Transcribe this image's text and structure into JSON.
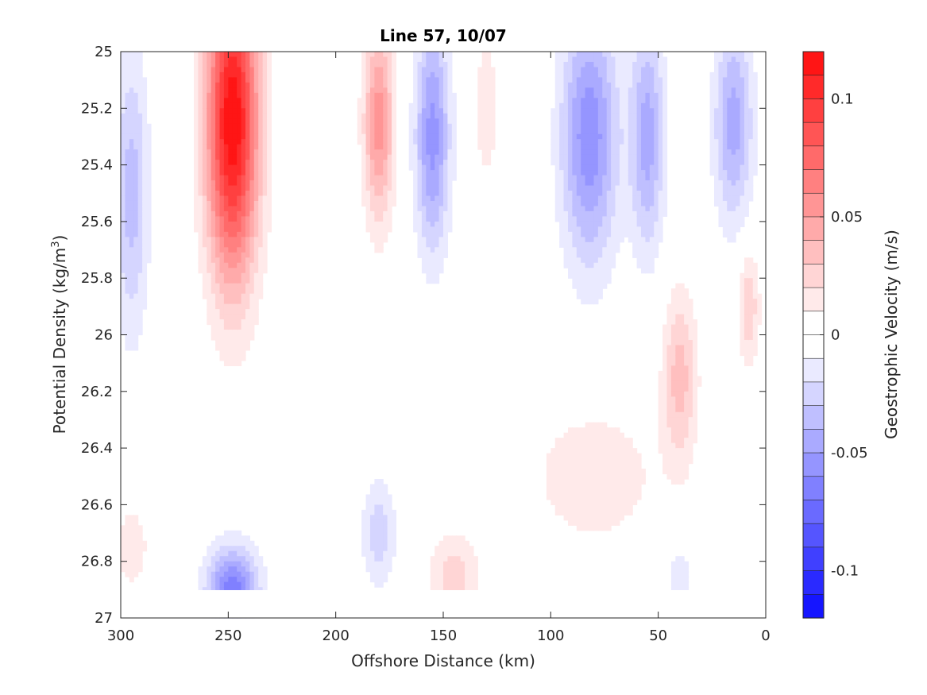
{
  "chart_data": {
    "type": "heatmap",
    "title": "Line 57, 10/07",
    "xlabel": "Offshore Distance (km)",
    "ylabel_prefix": "Potential Density (kg/m",
    "ylabel_sup": "3",
    "ylabel_suffix": ")",
    "colorbar_label": "Geostrophic Velocity (m/s)",
    "xlim": [
      300,
      0
    ],
    "ylim": [
      25,
      27
    ],
    "x_reversed": true,
    "y_reversed": true,
    "x_ticks": [
      "300",
      "250",
      "200",
      "150",
      "100",
      "50",
      "0"
    ],
    "y_ticks": [
      "25",
      "25.2",
      "25.4",
      "25.6",
      "25.8",
      "26",
      "26.2",
      "26.4",
      "26.6",
      "26.8",
      "27"
    ],
    "colorbar": {
      "range": [
        -0.12,
        0.12
      ],
      "step": 0.01,
      "tick_values": [
        0.1,
        0.05,
        0,
        -0.05,
        -0.1
      ],
      "tick_labels": [
        "0.1",
        "0.05",
        "0",
        "-0.05",
        "-0.1"
      ],
      "positive_color": "#ff0000",
      "negative_color": "#0000ff",
      "zero_color": "#ffffff"
    },
    "grid": false,
    "features": [
      {
        "x": 248,
        "y": 25.25,
        "amp": 0.12,
        "sx": 12,
        "sy": 0.55
      },
      {
        "x": 180,
        "y": 25.25,
        "amp": 0.055,
        "sx": 7,
        "sy": 0.35
      },
      {
        "x": 130,
        "y": 25.2,
        "amp": 0.02,
        "sx": 5,
        "sy": 0.25
      },
      {
        "x": 155,
        "y": 25.3,
        "amp": -0.055,
        "sx": 8,
        "sy": 0.4
      },
      {
        "x": 82,
        "y": 25.3,
        "amp": -0.058,
        "sx": 13,
        "sy": 0.45
      },
      {
        "x": 55,
        "y": 25.3,
        "amp": -0.045,
        "sx": 8,
        "sy": 0.4
      },
      {
        "x": 15,
        "y": 25.25,
        "amp": -0.045,
        "sx": 9,
        "sy": 0.35
      },
      {
        "x": 295,
        "y": 25.5,
        "amp": -0.035,
        "sx": 8,
        "sy": 0.5
      },
      {
        "x": 40,
        "y": 26.15,
        "amp": 0.035,
        "sx": 8,
        "sy": 0.3
      },
      {
        "x": 8,
        "y": 25.9,
        "amp": 0.03,
        "sx": 5,
        "sy": 0.2
      },
      {
        "x": 248,
        "y": 26.9,
        "amp": -0.065,
        "sx": 12,
        "sy": 0.15
      },
      {
        "x": 180,
        "y": 26.7,
        "amp": -0.025,
        "sx": 8,
        "sy": 0.2
      },
      {
        "x": 145,
        "y": 26.85,
        "amp": 0.025,
        "sx": 12,
        "sy": 0.15
      },
      {
        "x": 295,
        "y": 26.75,
        "amp": 0.018,
        "sx": 8,
        "sy": 0.15
      },
      {
        "x": 80,
        "y": 26.5,
        "amp": 0.018,
        "sx": 30,
        "sy": 0.25
      },
      {
        "x": 40,
        "y": 26.85,
        "amp": -0.02,
        "sx": 5,
        "sy": 0.1
      }
    ]
  }
}
